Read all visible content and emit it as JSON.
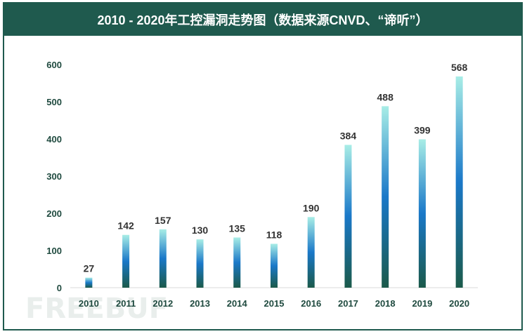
{
  "watermark_text": "FREEBUF",
  "chart_data": {
    "type": "bar",
    "title": "2010 - 2020年工控漏洞走势图（数据来源CNVD、“谛听”）",
    "categories": [
      "2010",
      "2011",
      "2012",
      "2013",
      "2014",
      "2015",
      "2016",
      "2017",
      "2018",
      "2019",
      "2020"
    ],
    "values": [
      27,
      142,
      157,
      130,
      135,
      118,
      190,
      384,
      488,
      399,
      568
    ],
    "xlabel": "",
    "ylabel": "",
    "ylim": [
      0,
      600
    ],
    "yticks": [
      0,
      100,
      200,
      300,
      400,
      500,
      600
    ],
    "grid": false,
    "legend": "none",
    "colors": {
      "title_bg": "#1f5a4e",
      "bar_top": "#a8ede6",
      "bar_mid": "#1a78c8",
      "bar_bottom": "#1b5a4a",
      "axis_text": "#1f4a3f",
      "value_text": "#333333"
    }
  }
}
